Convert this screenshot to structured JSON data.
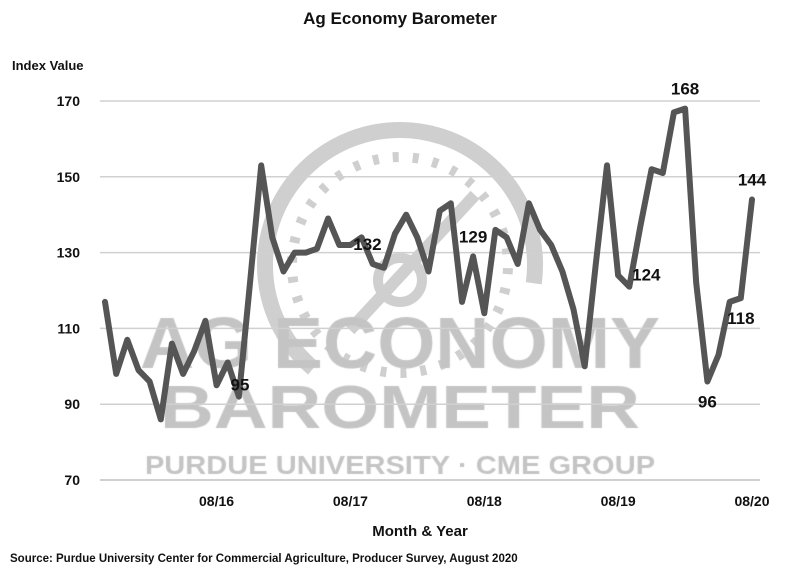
{
  "chart_data": {
    "type": "line",
    "title": "Ag Economy Barometer",
    "ylabel": "Index Value",
    "xlabel": "Month & Year",
    "source": "Source: Purdue University Center for Commercial Agriculture, Producer Survey, August 2020",
    "ylim": [
      70,
      170
    ],
    "yticks": [
      70,
      90,
      110,
      130,
      150,
      170
    ],
    "grid": true,
    "x_start": "10/15",
    "x_end": "08/20",
    "xtick_labels": [
      {
        "label": "08/16",
        "index": 10
      },
      {
        "label": "08/17",
        "index": 22
      },
      {
        "label": "08/18",
        "index": 34
      },
      {
        "label": "08/19",
        "index": 46
      },
      {
        "label": "08/20",
        "index": 58
      }
    ],
    "values": [
      117,
      98,
      107,
      99,
      96,
      86,
      106,
      98,
      104,
      112,
      95,
      101,
      92,
      122,
      153,
      134,
      125,
      130,
      130,
      131,
      139,
      132,
      132,
      134,
      127,
      126,
      135,
      140,
      134,
      125,
      141,
      143,
      117,
      129,
      114,
      136,
      134,
      127,
      143,
      136,
      132,
      125,
      115,
      100,
      127,
      153,
      124,
      121,
      137,
      152,
      151,
      167,
      168,
      122,
      96,
      103,
      117,
      118,
      144
    ],
    "data_labels": [
      {
        "index": 10,
        "text": "95",
        "pos": "right"
      },
      {
        "index": 21,
        "text": "132",
        "pos": "right"
      },
      {
        "index": 33,
        "text": "129",
        "pos": "top"
      },
      {
        "index": 46,
        "text": "124",
        "pos": "right"
      },
      {
        "index": 52,
        "text": "168",
        "pos": "top"
      },
      {
        "index": 54,
        "text": "96",
        "pos": "bottom"
      },
      {
        "index": 57,
        "text": "118",
        "pos": "bottom"
      },
      {
        "index": 58,
        "text": "144",
        "pos": "top"
      }
    ],
    "line_color": "#555555",
    "grid_color": "#d0d0d0"
  },
  "watermark": {
    "line1": "AG ECONOMY",
    "line2": "BAROMETER",
    "line3": "PURDUE UNIVERSITY · CME GROUP",
    "color": "#c4c4c4"
  }
}
